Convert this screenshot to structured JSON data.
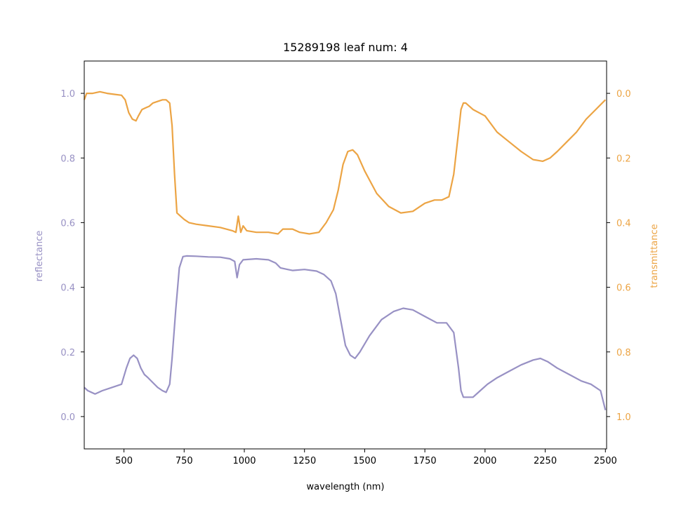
{
  "chart_data": {
    "type": "line",
    "title": "15289198 leaf num: 4",
    "xlabel": "wavelength (nm)",
    "ylabel_left": "reflectance",
    "ylabel_right": "transmittance",
    "xlim": [
      335,
      2505
    ],
    "ylim_left": [
      -0.1,
      1.1
    ],
    "ylim_right": [
      1.1,
      -0.1
    ],
    "right_axis_inverted": true,
    "x_ticks": [
      500,
      750,
      1000,
      1250,
      1500,
      1750,
      2000,
      2250,
      2500
    ],
    "y_left_ticks": [
      0.0,
      0.2,
      0.4,
      0.6,
      0.8,
      1.0
    ],
    "y_right_ticks": [
      0.0,
      0.2,
      0.4,
      0.6,
      0.8,
      1.0
    ],
    "colors": {
      "reflectance": "#9891c4",
      "transmittance": "#eca444"
    },
    "series": [
      {
        "name": "reflectance",
        "axis": "left",
        "x": [
          335,
          350,
          380,
          410,
          450,
          490,
          510,
          525,
          540,
          555,
          570,
          585,
          600,
          620,
          640,
          660,
          675,
          690,
          700,
          715,
          730,
          745,
          760,
          800,
          850,
          900,
          940,
          960,
          970,
          980,
          995,
          1010,
          1050,
          1100,
          1130,
          1150,
          1180,
          1200,
          1250,
          1300,
          1330,
          1360,
          1380,
          1400,
          1420,
          1440,
          1460,
          1480,
          1520,
          1570,
          1620,
          1660,
          1700,
          1750,
          1800,
          1840,
          1870,
          1890,
          1900,
          1910,
          1920,
          1950,
          1980,
          2010,
          2050,
          2100,
          2150,
          2200,
          2230,
          2260,
          2300,
          2350,
          2400,
          2440,
          2480,
          2500
        ],
        "y": [
          0.09,
          0.08,
          0.07,
          0.08,
          0.09,
          0.1,
          0.15,
          0.18,
          0.19,
          0.18,
          0.15,
          0.13,
          0.12,
          0.105,
          0.09,
          0.08,
          0.075,
          0.1,
          0.18,
          0.33,
          0.46,
          0.495,
          0.497,
          0.496,
          0.494,
          0.493,
          0.488,
          0.48,
          0.43,
          0.47,
          0.485,
          0.486,
          0.488,
          0.485,
          0.475,
          0.46,
          0.455,
          0.452,
          0.455,
          0.45,
          0.44,
          0.42,
          0.38,
          0.3,
          0.22,
          0.19,
          0.18,
          0.2,
          0.25,
          0.3,
          0.325,
          0.335,
          0.33,
          0.31,
          0.29,
          0.29,
          0.26,
          0.15,
          0.08,
          0.06,
          0.06,
          0.06,
          0.08,
          0.1,
          0.12,
          0.14,
          0.16,
          0.175,
          0.18,
          0.17,
          0.15,
          0.13,
          0.11,
          0.1,
          0.08,
          0.02
        ]
      },
      {
        "name": "transmittance",
        "axis": "right",
        "x": [
          335,
          345,
          370,
          400,
          430,
          460,
          490,
          505,
          520,
          535,
          550,
          560,
          575,
          590,
          605,
          620,
          640,
          660,
          675,
          690,
          700,
          710,
          720,
          735,
          750,
          770,
          800,
          850,
          900,
          950,
          965,
          975,
          985,
          995,
          1010,
          1050,
          1100,
          1140,
          1160,
          1200,
          1230,
          1270,
          1310,
          1340,
          1370,
          1390,
          1410,
          1430,
          1450,
          1470,
          1500,
          1550,
          1600,
          1650,
          1700,
          1750,
          1790,
          1820,
          1850,
          1870,
          1890,
          1900,
          1910,
          1920,
          1950,
          2000,
          2050,
          2100,
          2150,
          2200,
          2240,
          2270,
          2300,
          2340,
          2380,
          2420,
          2460,
          2500
        ],
        "y": [
          0.02,
          0.0,
          0.0,
          -0.005,
          0.0,
          0.003,
          0.006,
          0.02,
          0.06,
          0.08,
          0.085,
          0.07,
          0.05,
          0.045,
          0.04,
          0.03,
          0.025,
          0.02,
          0.02,
          0.03,
          0.1,
          0.25,
          0.37,
          0.38,
          0.39,
          0.4,
          0.405,
          0.41,
          0.415,
          0.425,
          0.43,
          0.38,
          0.43,
          0.41,
          0.425,
          0.43,
          0.43,
          0.435,
          0.42,
          0.42,
          0.43,
          0.435,
          0.43,
          0.4,
          0.36,
          0.3,
          0.22,
          0.18,
          0.175,
          0.19,
          0.24,
          0.31,
          0.35,
          0.37,
          0.365,
          0.34,
          0.33,
          0.33,
          0.32,
          0.25,
          0.12,
          0.05,
          0.03,
          0.03,
          0.05,
          0.07,
          0.12,
          0.15,
          0.18,
          0.205,
          0.21,
          0.2,
          0.18,
          0.15,
          0.12,
          0.08,
          0.05,
          0.02
        ]
      }
    ]
  }
}
